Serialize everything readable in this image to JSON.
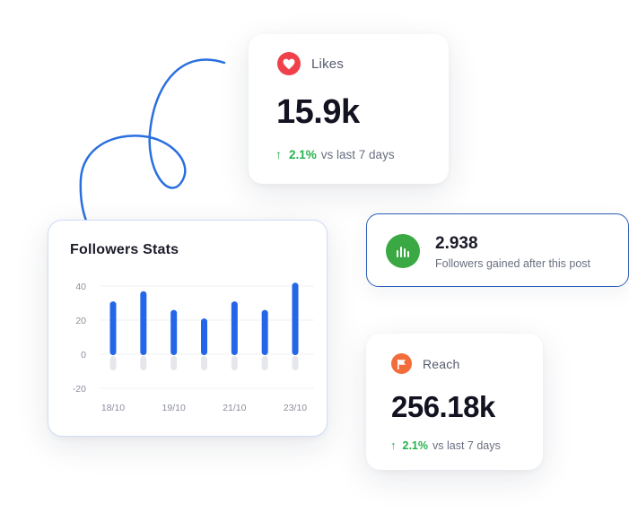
{
  "likes": {
    "label": "Likes",
    "icon": "heart-icon",
    "icon_color": "#f0414a",
    "value": "15.9k",
    "trend_pct": "2.1%",
    "trend_text": "vs last 7 days",
    "trend_color": "#25b34d"
  },
  "followers_stats": {
    "title": "Followers Stats",
    "chart_data": {
      "type": "bar",
      "categories": [
        "18/10",
        "",
        "19/10",
        "",
        "21/10",
        "",
        "23/10"
      ],
      "values": [
        31,
        37,
        26,
        21,
        31,
        26,
        42
      ],
      "yticks": [
        40,
        20,
        0,
        -20
      ],
      "ylim": [
        -20,
        40
      ],
      "bar_color": "#2466e8",
      "grid": true
    }
  },
  "followers_gained": {
    "value": "2.938",
    "label": "Followers gained after this post",
    "icon": "bar-chart-icon",
    "icon_color": "#3aa843",
    "border_color": "#2d5fb8"
  },
  "reach": {
    "label": "Reach",
    "icon": "flag-icon",
    "icon_color": "#f26d3a",
    "value": "256.18k",
    "trend_pct": "2.1%",
    "trend_text": "vs last 7 days",
    "trend_color": "#25b34d"
  }
}
